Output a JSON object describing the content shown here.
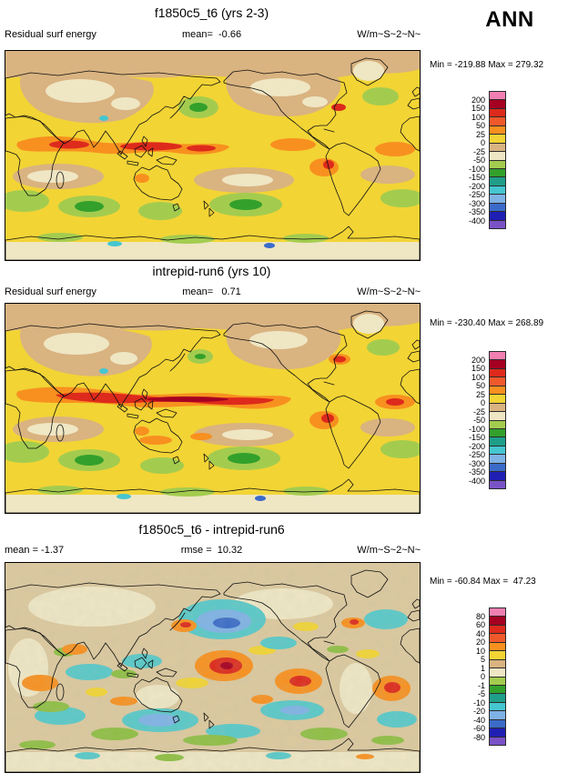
{
  "season_label": "ANN",
  "panels": [
    {
      "title": "f1850c5_t6 (yrs 2-3)",
      "left_label": "Residual surf energy",
      "center_label": "mean=  -0.66",
      "units_label": "W/m~S~2~N~",
      "minmax_label": "Min = -219.88 Max = 279.32",
      "colorbar": {
        "labels": [
          "200",
          "150",
          "100",
          "50",
          "25",
          "0",
          "-25",
          "-50",
          "-100",
          "-150",
          "-200",
          "-250",
          "-300",
          "-350",
          "-400"
        ],
        "colors": [
          "#F27FB2",
          "#A50021",
          "#DD2A1C",
          "#F0592B",
          "#F8901F",
          "#F2D435",
          "#D9B380",
          "#EFE6C4",
          "#A3CC4F",
          "#33A02C",
          "#1F9E89",
          "#45C6D0",
          "#7FB2E5",
          "#3B6BC9",
          "#1F1FB4",
          "#7A52C7"
        ]
      }
    },
    {
      "title": "intrepid-run6 (yrs 10)",
      "left_label": "Residual surf energy",
      "center_label": "mean=   0.71",
      "units_label": "W/m~S~2~N~",
      "minmax_label": "Min = -230.40 Max = 268.89",
      "colorbar": {
        "labels": [
          "200",
          "150",
          "100",
          "50",
          "25",
          "0",
          "-25",
          "-50",
          "-100",
          "-150",
          "-200",
          "-250",
          "-300",
          "-350",
          "-400"
        ],
        "colors": [
          "#F27FB2",
          "#A50021",
          "#DD2A1C",
          "#F0592B",
          "#F8901F",
          "#F2D435",
          "#D9B380",
          "#EFE6C4",
          "#A3CC4F",
          "#33A02C",
          "#1F9E89",
          "#45C6D0",
          "#7FB2E5",
          "#3B6BC9",
          "#1F1FB4",
          "#7A52C7"
        ]
      }
    },
    {
      "title": "f1850c5_t6 - intrepid-run6",
      "left_label": "mean = -1.37",
      "center_label": "rmse =  10.32",
      "units_label": "W/m~S~2~N~",
      "minmax_label": "Min = -60.84 Max =  47.23",
      "colorbar": {
        "labels": [
          "80",
          "60",
          "40",
          "20",
          "10",
          "5",
          "1",
          "0",
          "-1",
          "-5",
          "-10",
          "-20",
          "-40",
          "-60",
          "-80"
        ],
        "colors": [
          "#F27FB2",
          "#A50021",
          "#DD2A1C",
          "#F0592B",
          "#F8901F",
          "#F2D435",
          "#D9B380",
          "#EFE6C4",
          "#A3CC4F",
          "#33A02C",
          "#1F9E89",
          "#45C6D0",
          "#7FB2E5",
          "#3B6BC9",
          "#1F1FB4",
          "#7A52C7"
        ]
      }
    }
  ],
  "chart_data": [
    {
      "type": "heatmap",
      "subtype": "global-latlon-filled-contour-map",
      "title": "f1850c5_t6 (yrs 2-3)",
      "variable": "Residual surf energy",
      "units": "W/m~S~2~N~",
      "season": "ANN",
      "mean": -0.66,
      "min": -219.88,
      "max": 279.32,
      "contour_levels": [
        200,
        150,
        100,
        50,
        25,
        0,
        -25,
        -50,
        -100,
        -150,
        -200,
        -250,
        -300,
        -350,
        -400
      ],
      "palette_top_to_bottom": [
        "#F27FB2",
        "#A50021",
        "#DD2A1C",
        "#F0592B",
        "#F8901F",
        "#F2D435",
        "#D9B380",
        "#EFE6C4",
        "#A3CC4F",
        "#33A02C",
        "#1F9E89",
        "#45C6D0",
        "#7FB2E5",
        "#3B6BC9",
        "#1F1FB4",
        "#7A52C7"
      ],
      "legend_position": "right"
    },
    {
      "type": "heatmap",
      "subtype": "global-latlon-filled-contour-map",
      "title": "intrepid-run6 (yrs 10)",
      "variable": "Residual surf energy",
      "units": "W/m~S~2~N~",
      "season": "ANN",
      "mean": 0.71,
      "min": -230.4,
      "max": 268.89,
      "contour_levels": [
        200,
        150,
        100,
        50,
        25,
        0,
        -25,
        -50,
        -100,
        -150,
        -200,
        -250,
        -300,
        -350,
        -400
      ],
      "palette_top_to_bottom": [
        "#F27FB2",
        "#A50021",
        "#DD2A1C",
        "#F0592B",
        "#F8901F",
        "#F2D435",
        "#D9B380",
        "#EFE6C4",
        "#A3CC4F",
        "#33A02C",
        "#1F9E89",
        "#45C6D0",
        "#7FB2E5",
        "#3B6BC9",
        "#1F1FB4",
        "#7A52C7"
      ],
      "legend_position": "right"
    },
    {
      "type": "heatmap",
      "subtype": "global-latlon-filled-contour-map",
      "title": "f1850c5_t6 - intrepid-run6",
      "units": "W/m~S~2~N~",
      "season": "ANN",
      "mean": -1.37,
      "rmse": 10.32,
      "min": -60.84,
      "max": 47.23,
      "contour_levels": [
        80,
        60,
        40,
        20,
        10,
        5,
        1,
        0,
        -1,
        -5,
        -10,
        -20,
        -40,
        -60,
        -80
      ],
      "palette_top_to_bottom": [
        "#F27FB2",
        "#A50021",
        "#DD2A1C",
        "#F0592B",
        "#F8901F",
        "#F2D435",
        "#D9B380",
        "#EFE6C4",
        "#A3CC4F",
        "#33A02C",
        "#1F9E89",
        "#45C6D0",
        "#7FB2E5",
        "#3B6BC9",
        "#1F1FB4",
        "#7A52C7"
      ],
      "legend_position": "right"
    }
  ]
}
